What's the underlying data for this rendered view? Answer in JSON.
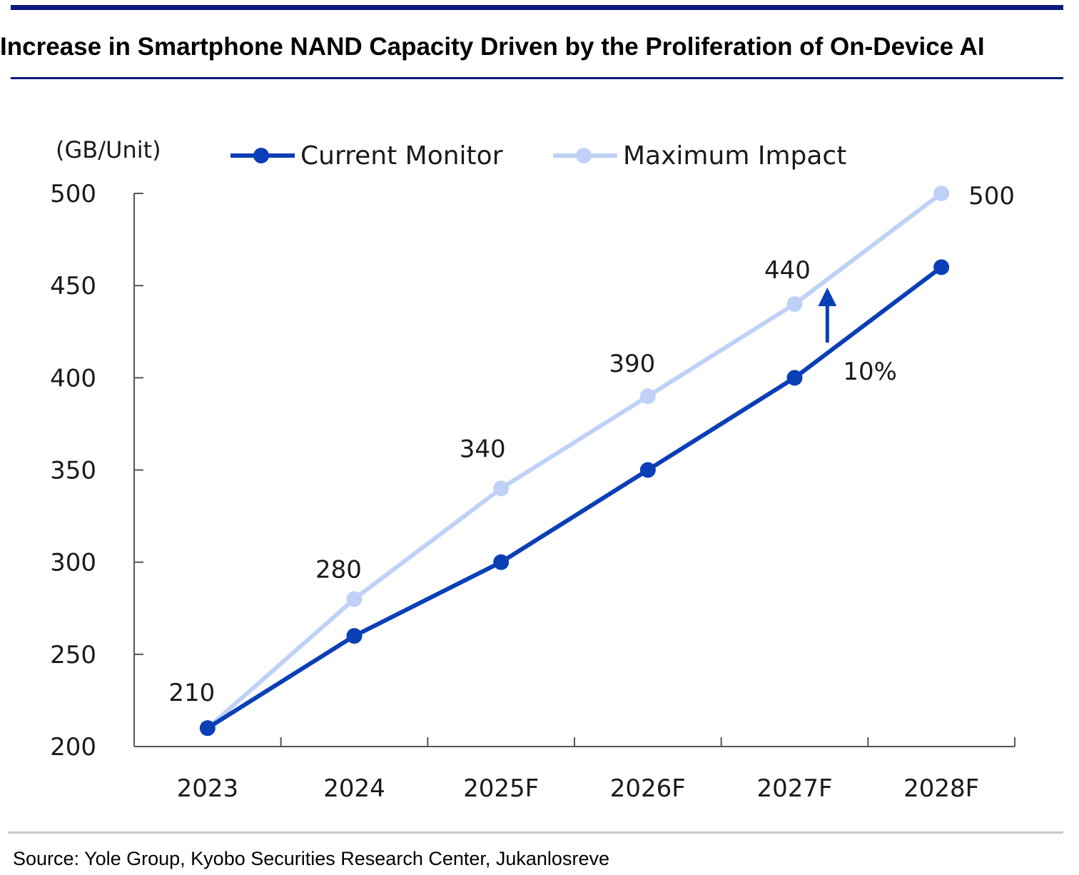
{
  "header": {
    "title": "Increase in Smartphone NAND Capacity Driven by the Proliferation of On-Device AI"
  },
  "footer": {
    "source": "Source: Yole Group, Kyobo Securities Research Center, Jukanlosreve"
  },
  "colors": {
    "rule": "#0b1a7a",
    "current": "#0a3fb5",
    "maximum": "#bfd1f7",
    "axis": "#555555",
    "text": "#1a1a1a"
  },
  "chart_data": {
    "type": "line",
    "categories": [
      "2023",
      "2024",
      "2025F",
      "2026F",
      "2027F",
      "2028F"
    ],
    "ylabel": "(GB/Unit)",
    "ylim": [
      200,
      500
    ],
    "yticks": [
      200,
      250,
      300,
      350,
      400,
      450,
      500
    ],
    "grid": false,
    "legend_position": "top",
    "series": [
      {
        "name": "Current Monitor",
        "values": [
          210,
          260,
          300,
          350,
          400,
          460
        ],
        "color": "#0a3fb5"
      },
      {
        "name": "Maximum Impact",
        "values": [
          210,
          280,
          340,
          390,
          440,
          500
        ],
        "color": "#bfd1f7",
        "data_labels": [
          "210",
          "280",
          "340",
          "390",
          "440",
          "500"
        ]
      }
    ],
    "annotations": [
      {
        "text": "10%",
        "between_categories": [
          "2027F",
          "2028F"
        ],
        "marker": "up-arrow"
      }
    ]
  }
}
